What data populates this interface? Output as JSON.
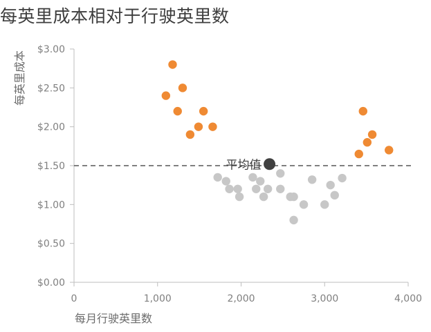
{
  "chart_data": {
    "type": "scatter",
    "title": "每英里成本相对于行驶英里数",
    "xlabel": "每月行驶英里数",
    "ylabel": "每英里成本",
    "xlim": [
      0,
      4000
    ],
    "ylim": [
      0,
      3.0
    ],
    "x_ticks": [
      {
        "value": 0,
        "label": "0"
      },
      {
        "value": 1000,
        "label": "1,000"
      },
      {
        "value": 2000,
        "label": "2,000"
      },
      {
        "value": 3000,
        "label": "3,000"
      },
      {
        "value": 4000,
        "label": "4,000"
      }
    ],
    "y_ticks": [
      {
        "value": 0,
        "label": "$0.00"
      },
      {
        "value": 0.5,
        "label": "$0.50"
      },
      {
        "value": 1.0,
        "label": "$1.00"
      },
      {
        "value": 1.5,
        "label": "$1.50"
      },
      {
        "value": 2.0,
        "label": "$2.00"
      },
      {
        "value": 2.5,
        "label": "$2.50"
      },
      {
        "value": 3.0,
        "label": "$3.00"
      }
    ],
    "grid": false,
    "reference_line": {
      "y": 1.5,
      "style": "dashed",
      "color": "#555555"
    },
    "average_point": {
      "x": 2340,
      "y": 1.52,
      "label": "平均值",
      "color": "#404040"
    },
    "series": [
      {
        "color": "#ef8a33",
        "points": [
          {
            "x": 1100,
            "y": 2.4
          },
          {
            "x": 1180,
            "y": 2.8
          },
          {
            "x": 1240,
            "y": 2.2
          },
          {
            "x": 1300,
            "y": 2.5
          },
          {
            "x": 1390,
            "y": 1.9
          },
          {
            "x": 1490,
            "y": 2.0
          },
          {
            "x": 1550,
            "y": 2.2
          },
          {
            "x": 1660,
            "y": 2.0
          },
          {
            "x": 3410,
            "y": 1.65
          },
          {
            "x": 3460,
            "y": 2.2
          },
          {
            "x": 3510,
            "y": 1.8
          },
          {
            "x": 3570,
            "y": 1.9
          },
          {
            "x": 3770,
            "y": 1.7
          }
        ]
      },
      {
        "color": "#c7c7c7",
        "points": [
          {
            "x": 1720,
            "y": 1.35
          },
          {
            "x": 1820,
            "y": 1.3
          },
          {
            "x": 1860,
            "y": 1.2
          },
          {
            "x": 1960,
            "y": 1.2
          },
          {
            "x": 1980,
            "y": 1.1
          },
          {
            "x": 2140,
            "y": 1.35
          },
          {
            "x": 2180,
            "y": 1.2
          },
          {
            "x": 2230,
            "y": 1.3
          },
          {
            "x": 2270,
            "y": 1.1
          },
          {
            "x": 2320,
            "y": 1.2
          },
          {
            "x": 2470,
            "y": 1.4
          },
          {
            "x": 2470,
            "y": 1.2
          },
          {
            "x": 2590,
            "y": 1.1
          },
          {
            "x": 2630,
            "y": 1.1
          },
          {
            "x": 2630,
            "y": 0.8
          },
          {
            "x": 2750,
            "y": 1.0
          },
          {
            "x": 2850,
            "y": 1.32
          },
          {
            "x": 3000,
            "y": 1.0
          },
          {
            "x": 3070,
            "y": 1.25
          },
          {
            "x": 3120,
            "y": 1.12
          },
          {
            "x": 3210,
            "y": 1.34
          }
        ]
      }
    ]
  }
}
